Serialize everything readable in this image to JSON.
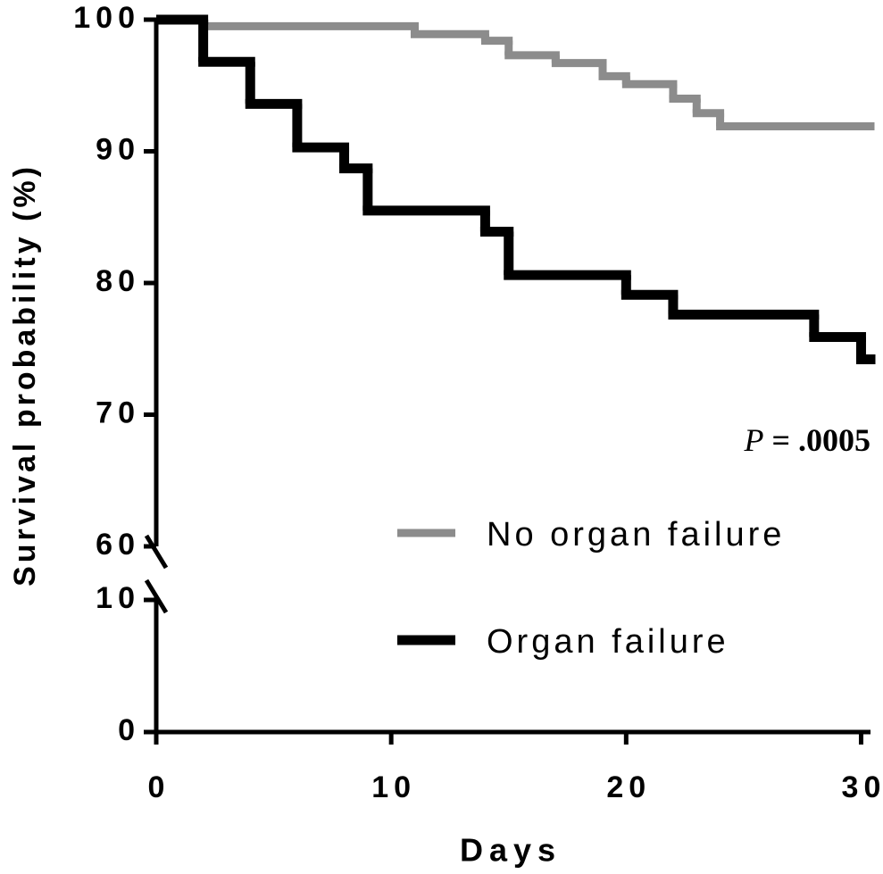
{
  "chart_data": {
    "type": "step",
    "x_label": "Days",
    "y_label": "Survival probability (%)",
    "xlim": [
      0,
      30.4
    ],
    "xticks": [
      0,
      10,
      20,
      30
    ],
    "y_segments": [
      {
        "ylim": [
          60,
          100
        ],
        "yticks": [
          60,
          70,
          80,
          90,
          100
        ]
      },
      {
        "ylim": [
          0,
          10
        ],
        "yticks": [
          0,
          10
        ]
      }
    ],
    "series": [
      {
        "name": "No organ failure",
        "color": "#8c8c8c",
        "x": [
          0,
          2,
          11,
          14,
          15,
          17,
          19,
          20,
          22,
          23,
          24
        ],
        "values": [
          100,
          99.5,
          98.9,
          98.4,
          97.3,
          96.7,
          95.7,
          95.1,
          94.0,
          92.9,
          91.9
        ]
      },
      {
        "name": "Organ failure",
        "color": "#000000",
        "x": [
          0,
          2,
          4,
          6,
          8,
          9,
          14,
          15,
          20,
          22,
          28,
          30
        ],
        "values": [
          100,
          96.8,
          93.6,
          90.3,
          88.7,
          85.5,
          83.9,
          80.6,
          79.1,
          77.6,
          75.9,
          74.2
        ]
      }
    ],
    "annotation": {
      "symbol": "P",
      "text": "= .0005"
    },
    "legend": "right"
  }
}
